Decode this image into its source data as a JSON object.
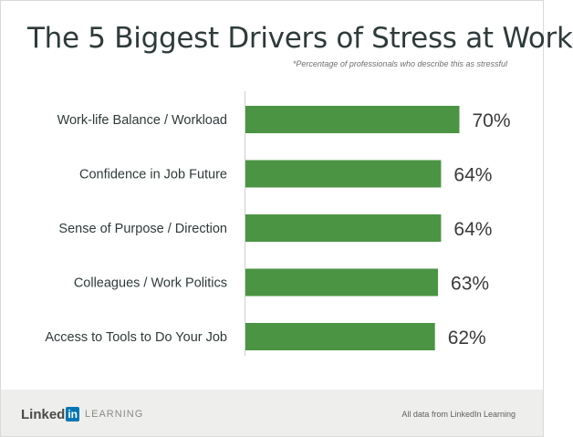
{
  "title": "The 5 Biggest Drivers of Stress at Work",
  "subtitle": "*Percentage of professionals who describe this as stressful",
  "footer": {
    "logo_linked": "Linked",
    "logo_in": "in",
    "logo_learning": "LEARNING",
    "source": "All data from LinkedIn Learning"
  },
  "colors": {
    "bar": "#4a9443",
    "label": "#2f3a3a",
    "value": "#3a3a3a"
  },
  "chart_data": {
    "type": "bar",
    "orientation": "horizontal",
    "categories": [
      "Work-life Balance / Workload",
      "Confidence in Job Future",
      "Sense of Purpose / Direction",
      "Colleagues / Work Politics",
      "Access to Tools to Do Your Job"
    ],
    "values": [
      70,
      64,
      64,
      63,
      62
    ],
    "value_labels": [
      "70%",
      "64%",
      "64%",
      "63%",
      "62%"
    ],
    "xlim": [
      0,
      100
    ],
    "grid": false,
    "legend": "none"
  }
}
